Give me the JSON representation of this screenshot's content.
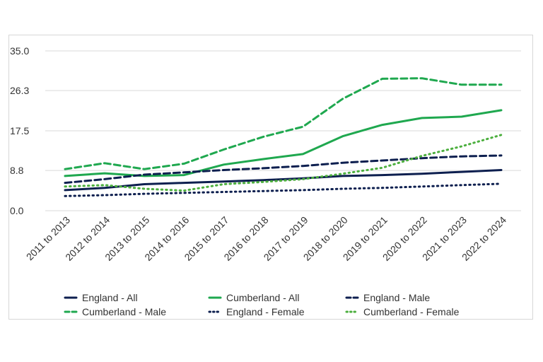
{
  "chart_data": {
    "type": "line",
    "categories": [
      "2011 to 2013",
      "2012 to 2014",
      "2013 to 2015",
      "2014 to 2016",
      "2015 to 2017",
      "2016 to 2018",
      "2017 to 2019",
      "2018 to 2020",
      "2019 to 2021",
      "2020 to 2022",
      "2021 to 2023",
      "2022 to 2024"
    ],
    "y_ticks": [
      "0.0",
      "8.8",
      "17.5",
      "26.3",
      "35.0"
    ],
    "ylim": [
      0,
      35
    ],
    "grid": "horizontal",
    "legend_position": "bottom",
    "series": [
      {
        "name": "England - All",
        "color": "#0d1f4f",
        "style": "solid",
        "values": [
          4.5,
          5.0,
          5.8,
          6.1,
          6.4,
          6.7,
          7.1,
          7.6,
          7.8,
          8.1,
          8.5,
          8.9
        ]
      },
      {
        "name": "Cumberland - All",
        "color": "#1fa84f",
        "style": "solid",
        "values": [
          7.6,
          8.2,
          7.6,
          7.8,
          10.1,
          11.3,
          12.4,
          16.3,
          18.8,
          20.3,
          20.6,
          22.0
        ]
      },
      {
        "name": "England - Male",
        "color": "#0d1f4f",
        "style": "dashed",
        "values": [
          6.1,
          6.9,
          7.9,
          8.4,
          8.9,
          9.3,
          9.8,
          10.5,
          11.0,
          11.5,
          11.9,
          12.1
        ]
      },
      {
        "name": "Cumberland - Male",
        "color": "#1fa84f",
        "style": "dashed",
        "values": [
          9.1,
          10.4,
          9.1,
          10.3,
          13.4,
          16.2,
          18.4,
          24.5,
          28.9,
          29.0,
          27.6,
          27.6
        ]
      },
      {
        "name": "England - Female",
        "color": "#0d1f4f",
        "style": "dotted",
        "values": [
          3.2,
          3.4,
          3.7,
          3.9,
          4.1,
          4.3,
          4.5,
          4.8,
          5.0,
          5.3,
          5.6,
          5.9
        ]
      },
      {
        "name": "Cumberland - Female",
        "color": "#4caf3e",
        "style": "dotted",
        "values": [
          5.3,
          5.6,
          4.8,
          4.4,
          5.8,
          6.3,
          6.9,
          8.1,
          9.4,
          12.0,
          14.1,
          16.6
        ]
      }
    ]
  }
}
